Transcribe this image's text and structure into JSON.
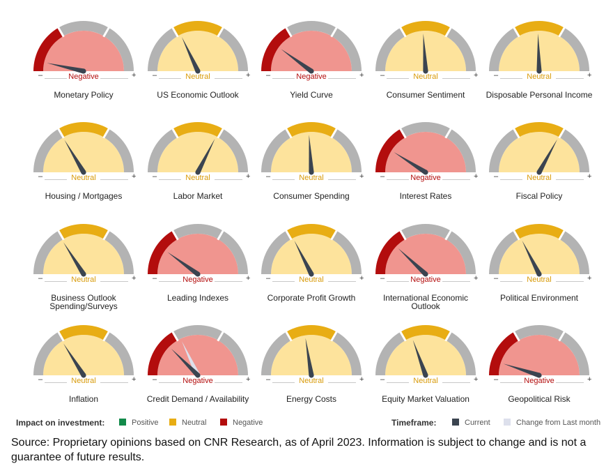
{
  "chart_data": {
    "type": "gauge",
    "scale": {
      "min_label": "–",
      "max_label": "+"
    },
    "status_colors": {
      "Negative": "#b30d0d",
      "Neutral": "#e8ad14",
      "Positive": "#128a4a"
    },
    "fill_colors": {
      "Negative": "#f0958f",
      "Neutral": "#fde39c"
    },
    "gauges": [
      {
        "name": "Monetary Policy",
        "status": "Negative",
        "current": 0.07
      },
      {
        "name": "US Economic Outlook",
        "status": "Neutral",
        "current": 0.36
      },
      {
        "name": "Yield Curve",
        "status": "Negative",
        "current": 0.2
      },
      {
        "name": "Consumer Sentiment",
        "status": "Neutral",
        "current": 0.48
      },
      {
        "name": "Disposable Personal Income",
        "status": "Neutral",
        "current": 0.49
      },
      {
        "name": "Housing / Mortgages",
        "status": "Neutral",
        "current": 0.33
      },
      {
        "name": "Labor Market",
        "status": "Neutral",
        "current": 0.65
      },
      {
        "name": "Consumer Spending",
        "status": "Neutral",
        "current": 0.48
      },
      {
        "name": "Interest Rates",
        "status": "Negative",
        "current": 0.18
      },
      {
        "name": "Fiscal Policy",
        "status": "Neutral",
        "current": 0.66
      },
      {
        "name": "Business Outlook Spending/Surveys",
        "status": "Neutral",
        "current": 0.32
      },
      {
        "name": "Leading Indexes",
        "status": "Negative",
        "current": 0.2
      },
      {
        "name": "Corporate Profit Growth",
        "status": "Neutral",
        "current": 0.35
      },
      {
        "name": "International Economic Outlook",
        "status": "Negative",
        "current": 0.24
      },
      {
        "name": "Political Environment",
        "status": "Neutral",
        "current": 0.35
      },
      {
        "name": "Inflation",
        "status": "Neutral",
        "current": 0.32
      },
      {
        "name": "Credit Demand / Availability",
        "status": "Negative",
        "current": 0.25,
        "last_month": 0.36
      },
      {
        "name": "Energy Costs",
        "status": "Neutral",
        "current": 0.45
      },
      {
        "name": "Equity Market Valuation",
        "status": "Neutral",
        "current": 0.39
      },
      {
        "name": "Geopolitical Risk",
        "status": "Negative",
        "current": 0.1
      }
    ]
  },
  "legend": {
    "impact_title": "Impact on investment:",
    "positive": "Positive",
    "neutral": "Neutral",
    "negative": "Negative",
    "timeframe_title": "Timeframe:",
    "current": "Current",
    "change": "Change from Last month",
    "current_color": "#3b4450",
    "change_color": "#dde0ec"
  },
  "footer": {
    "source": "Source: Proprietary opinions based on CNR Research, as of April 2023. Information is subject to change and is not a guarantee of future results."
  }
}
